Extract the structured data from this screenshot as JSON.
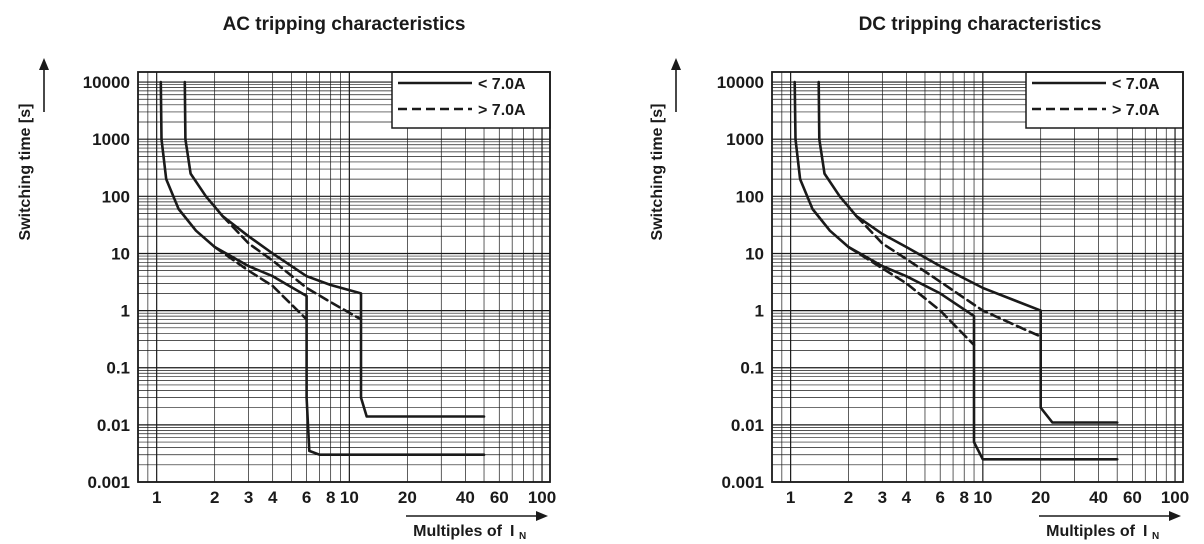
{
  "chart_data": [
    {
      "type": "line",
      "title": "AC tripping characteristics",
      "xlabel": "Multiples of",
      "xlabel_symbol": "I",
      "xlabel_subscript": "N",
      "ylabel": "Switching time [s]",
      "xscale": "log",
      "yscale": "log",
      "xlim": [
        0.8,
        110
      ],
      "ylim": [
        0.001,
        15000
      ],
      "grid": true,
      "legend_position": "top-right",
      "x_tick_labels": [
        "1",
        "2",
        "3",
        "4",
        "6",
        "8",
        "10",
        "20",
        "40",
        "60",
        "100"
      ],
      "y_tick_labels": [
        "10000",
        "1000",
        "100",
        "10",
        "1",
        "0.1",
        "0.01",
        "0.001"
      ],
      "legend": [
        {
          "label": "< 7.0A",
          "style": "solid"
        },
        {
          "label": "> 7.0A",
          "style": "dashed"
        }
      ],
      "series": [
        {
          "legend": "< 7.0A",
          "style": "solid",
          "points": [
            [
              1.05,
              10000
            ],
            [
              1.06,
              1000
            ],
            [
              1.12,
              200
            ],
            [
              1.3,
              60
            ],
            [
              1.6,
              25
            ],
            [
              2,
              13
            ],
            [
              3,
              6
            ],
            [
              4,
              4
            ],
            [
              6,
              1.8
            ],
            [
              6,
              0.03
            ],
            [
              6.2,
              0.0035
            ],
            [
              7,
              0.003
            ],
            [
              50,
              0.003
            ]
          ]
        },
        {
          "legend": "< 7.0A",
          "style": "solid",
          "points": [
            [
              1.4,
              10000
            ],
            [
              1.41,
              1000
            ],
            [
              1.5,
              250
            ],
            [
              1.8,
              100
            ],
            [
              2.2,
              45
            ],
            [
              3,
              20
            ],
            [
              4,
              10
            ],
            [
              6,
              4
            ],
            [
              8,
              2.8
            ],
            [
              11.5,
              2
            ],
            [
              11.5,
              0.03
            ],
            [
              12.3,
              0.014
            ],
            [
              50,
              0.014
            ]
          ]
        },
        {
          "legend": "> 7.0A",
          "style": "dashed",
          "points": [
            [
              2,
              13
            ],
            [
              3,
              5
            ],
            [
              4,
              2.7
            ],
            [
              6,
              0.7
            ]
          ]
        },
        {
          "legend": "> 7.0A",
          "style": "dashed",
          "points": [
            [
              2.2,
              45
            ],
            [
              3,
              15
            ],
            [
              4,
              7.5
            ],
            [
              6,
              2.5
            ],
            [
              8,
              1.4
            ],
            [
              11.5,
              0.7
            ]
          ]
        }
      ]
    },
    {
      "type": "line",
      "title": "DC tripping characteristics",
      "xlabel": "Multiples of",
      "xlabel_symbol": "I",
      "xlabel_subscript": "N",
      "ylabel": "Switching time  [s]",
      "xscale": "log",
      "yscale": "log",
      "xlim": [
        0.8,
        110
      ],
      "ylim": [
        0.001,
        15000
      ],
      "grid": true,
      "legend_position": "top-right",
      "x_tick_labels": [
        "1",
        "2",
        "3",
        "4",
        "6",
        "8",
        "10",
        "20",
        "40",
        "60",
        "100"
      ],
      "y_tick_labels": [
        "10000",
        "1000",
        "100",
        "10",
        "1",
        "0.1",
        "0.01",
        "0.001"
      ],
      "legend": [
        {
          "label": "< 7.0A",
          "style": "solid"
        },
        {
          "label": "> 7.0A",
          "style": "dashed"
        }
      ],
      "series": [
        {
          "legend": "< 7.0A",
          "style": "solid",
          "points": [
            [
              1.05,
              10000
            ],
            [
              1.06,
              1000
            ],
            [
              1.12,
              200
            ],
            [
              1.3,
              60
            ],
            [
              1.6,
              25
            ],
            [
              2,
              13
            ],
            [
              3,
              6
            ],
            [
              4,
              4
            ],
            [
              6,
              2
            ],
            [
              9,
              0.8
            ],
            [
              9,
              0.005
            ],
            [
              10,
              0.0025
            ],
            [
              50,
              0.0025
            ]
          ]
        },
        {
          "legend": "< 7.0A",
          "style": "solid",
          "points": [
            [
              1.4,
              10000
            ],
            [
              1.41,
              1000
            ],
            [
              1.5,
              250
            ],
            [
              1.8,
              100
            ],
            [
              2.2,
              45
            ],
            [
              3,
              22
            ],
            [
              4,
              13
            ],
            [
              6,
              6
            ],
            [
              10,
              2.5
            ],
            [
              20,
              1
            ],
            [
              20,
              0.02
            ],
            [
              23,
              0.011
            ],
            [
              50,
              0.011
            ]
          ]
        },
        {
          "legend": "> 7.0A",
          "style": "dashed",
          "points": [
            [
              2,
              13
            ],
            [
              3,
              5.5
            ],
            [
              4,
              3
            ],
            [
              6,
              1
            ],
            [
              9,
              0.25
            ]
          ]
        },
        {
          "legend": "> 7.0A",
          "style": "dashed",
          "points": [
            [
              2.2,
              45
            ],
            [
              3,
              15
            ],
            [
              4,
              8
            ],
            [
              6,
              3.2
            ],
            [
              10,
              1
            ],
            [
              20,
              0.35
            ]
          ]
        }
      ]
    }
  ]
}
